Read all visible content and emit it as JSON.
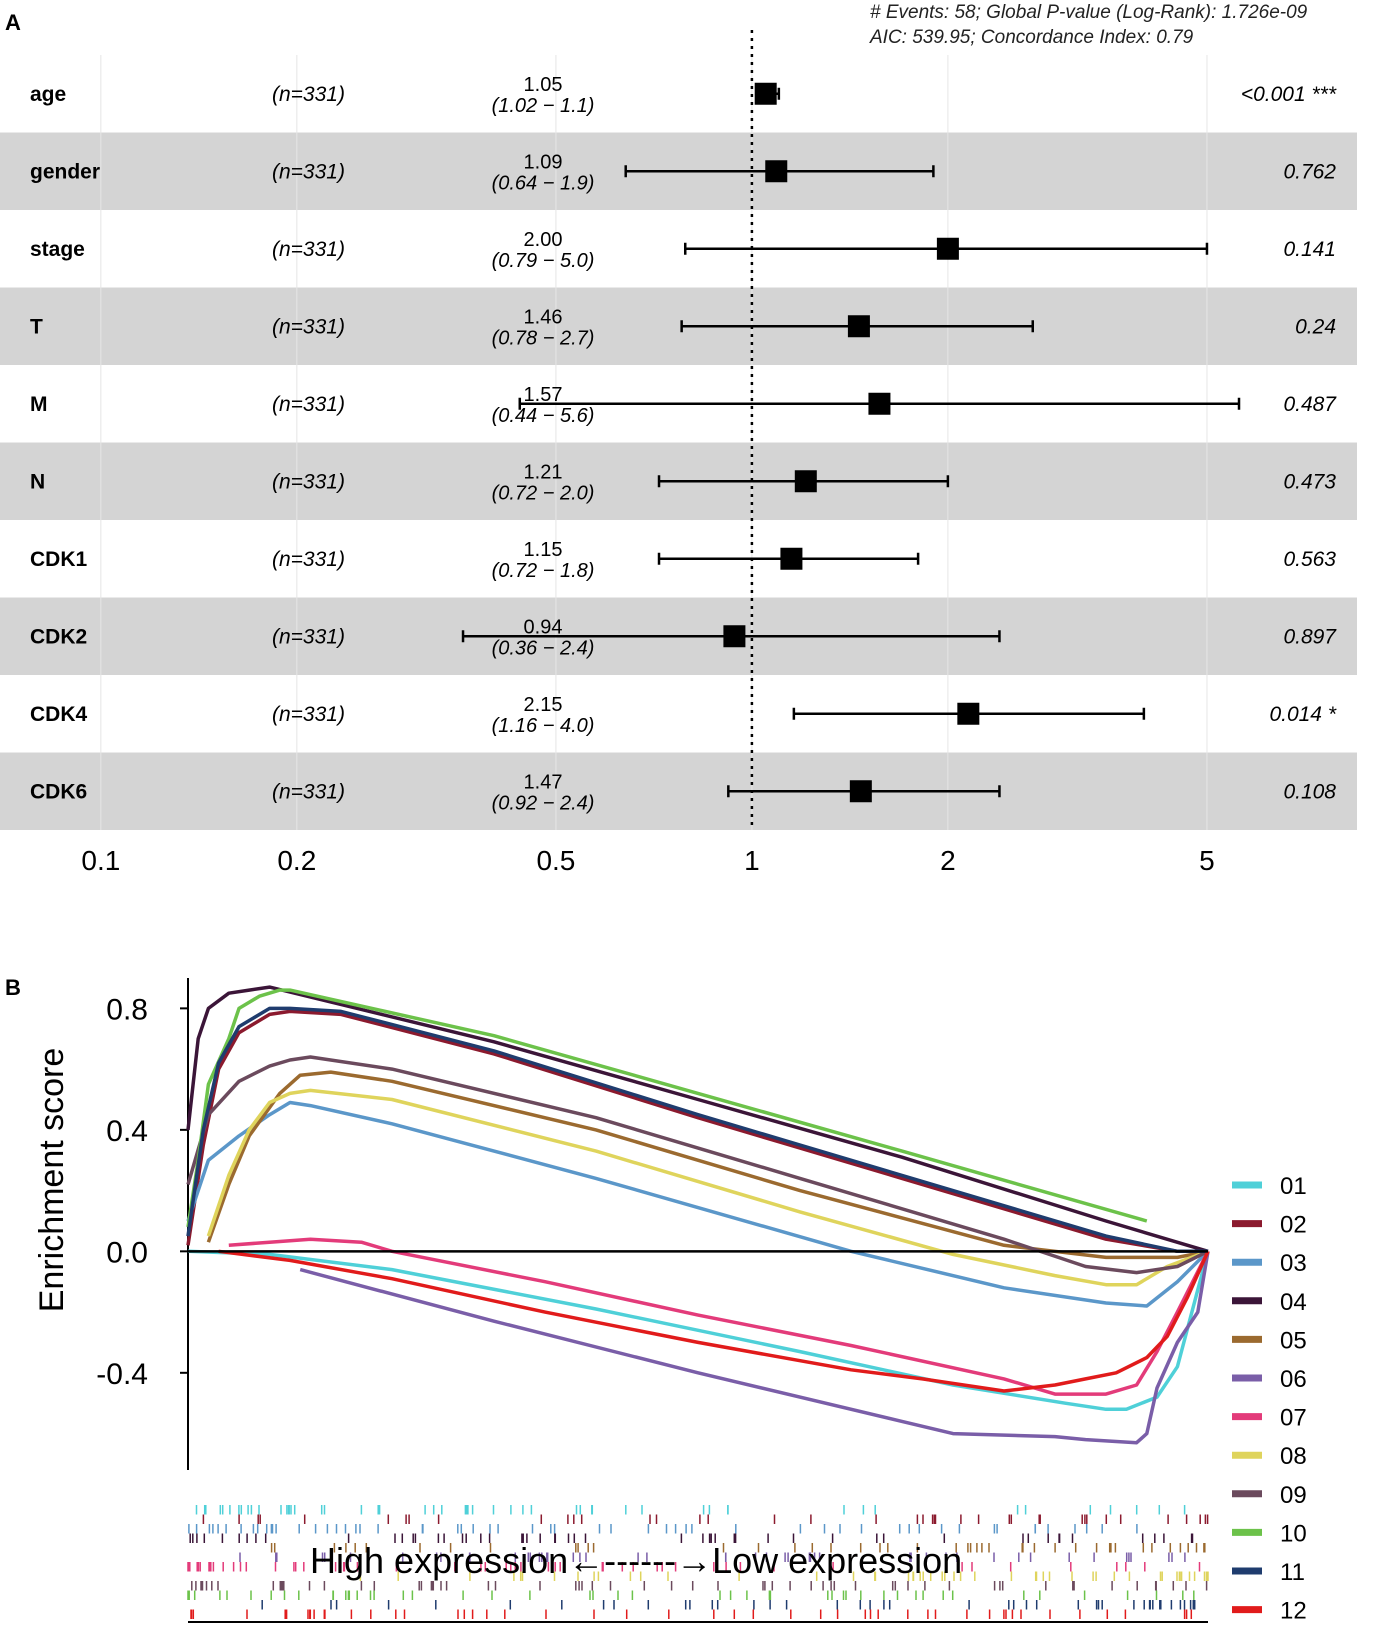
{
  "panel_labels": {
    "a": "A",
    "b": "B"
  },
  "chart_data": [
    {
      "type": "forest",
      "panel": "A",
      "stats_line1": "# Events: 58; Global P-value (Log-Rank): 1.726e-09",
      "stats_line2": "AIC: 539.95; Concordance Index: 0.79",
      "x_ticks": [
        0.1,
        0.2,
        0.5,
        1,
        2,
        5
      ],
      "x_tick_labels": [
        "0.1",
        "0.2",
        "0.5",
        "1",
        "2",
        "5"
      ],
      "xlim": [
        0.07,
        8.5
      ],
      "reference_line": 1,
      "rows": [
        {
          "label": "age",
          "n": "(n=331)",
          "hr_text": "1.05",
          "ci_text": "(1.02 − 1.1)",
          "hr": 1.05,
          "lo": 1.02,
          "hi": 1.1,
          "p": "<0.001 ***"
        },
        {
          "label": "gender",
          "n": "(n=331)",
          "hr_text": "1.09",
          "ci_text": "(0.64 − 1.9)",
          "hr": 1.09,
          "lo": 0.64,
          "hi": 1.9,
          "p": "0.762"
        },
        {
          "label": "stage",
          "n": "(n=331)",
          "hr_text": "2.00",
          "ci_text": "(0.79 − 5.0)",
          "hr": 2.0,
          "lo": 0.79,
          "hi": 5.0,
          "p": "0.141"
        },
        {
          "label": "T",
          "n": "(n=331)",
          "hr_text": "1.46",
          "ci_text": "(0.78 − 2.7)",
          "hr": 1.46,
          "lo": 0.78,
          "hi": 2.7,
          "p": "0.24"
        },
        {
          "label": "M",
          "n": "(n=331)",
          "hr_text": "1.57",
          "ci_text": "(0.44 − 5.6)",
          "hr": 1.57,
          "lo": 0.44,
          "hi": 5.6,
          "p": "0.487"
        },
        {
          "label": "N",
          "n": "(n=331)",
          "hr_text": "1.21",
          "ci_text": "(0.72 − 2.0)",
          "hr": 1.21,
          "lo": 0.72,
          "hi": 2.0,
          "p": "0.473"
        },
        {
          "label": "CDK1",
          "n": "(n=331)",
          "hr_text": "1.15",
          "ci_text": "(0.72 − 1.8)",
          "hr": 1.15,
          "lo": 0.72,
          "hi": 1.8,
          "p": "0.563"
        },
        {
          "label": "CDK2",
          "n": "(n=331)",
          "hr_text": "0.94",
          "ci_text": "(0.36 − 2.4)",
          "hr": 0.94,
          "lo": 0.36,
          "hi": 2.4,
          "p": "0.897"
        },
        {
          "label": "CDK4",
          "n": "(n=331)",
          "hr_text": "2.15",
          "ci_text": "(1.16 − 4.0)",
          "hr": 2.15,
          "lo": 1.16,
          "hi": 4.0,
          "p": "0.014 *"
        },
        {
          "label": "CDK6",
          "n": "(n=331)",
          "hr_text": "1.47",
          "ci_text": "(0.92 − 2.4)",
          "hr": 1.47,
          "lo": 0.92,
          "hi": 2.4,
          "p": "0.108"
        }
      ]
    },
    {
      "type": "line",
      "panel": "B",
      "ylabel": "Enrichment score",
      "ylim": [
        -0.72,
        0.9
      ],
      "y_ticks": [
        0.8,
        0.4,
        0.0,
        -0.4
      ],
      "y_tick_labels": [
        "0.8",
        "0.4",
        "0.0",
        "-0.4"
      ],
      "xlim": [
        0,
        1
      ],
      "annotation": "High expression←------→Low expression",
      "series": [
        {
          "name": "01",
          "color": "#4fd0d8",
          "x": [
            0.0,
            0.08,
            0.2,
            0.4,
            0.6,
            0.75,
            0.86,
            0.9,
            0.92,
            0.95,
            0.97,
            1.0
          ],
          "y": [
            0.0,
            -0.01,
            -0.06,
            -0.19,
            -0.33,
            -0.44,
            -0.5,
            -0.52,
            -0.52,
            -0.48,
            -0.38,
            0.0
          ]
        },
        {
          "name": "02",
          "color": "#8b1a2e",
          "x": [
            0.0,
            0.015,
            0.03,
            0.05,
            0.08,
            0.1,
            0.15,
            0.3,
            0.5,
            0.7,
            0.9,
            0.97,
            1.0
          ],
          "y": [
            0.02,
            0.35,
            0.6,
            0.72,
            0.78,
            0.79,
            0.78,
            0.65,
            0.44,
            0.24,
            0.04,
            0.0,
            0.0
          ]
        },
        {
          "name": "03",
          "color": "#5b97c9",
          "x": [
            0.0,
            0.02,
            0.05,
            0.08,
            0.1,
            0.12,
            0.2,
            0.4,
            0.65,
            0.8,
            0.9,
            0.94,
            0.97,
            1.0
          ],
          "y": [
            0.1,
            0.3,
            0.38,
            0.45,
            0.49,
            0.48,
            0.42,
            0.24,
            0.0,
            -0.12,
            -0.17,
            -0.18,
            -0.1,
            0.0
          ]
        },
        {
          "name": "04",
          "color": "#3b1538",
          "x": [
            0.0,
            0.01,
            0.02,
            0.04,
            0.06,
            0.08,
            0.3,
            0.5,
            0.7,
            0.9,
            0.98,
            1.0
          ],
          "y": [
            0.4,
            0.7,
            0.8,
            0.85,
            0.86,
            0.87,
            0.69,
            0.5,
            0.31,
            0.1,
            0.02,
            0.0
          ]
        },
        {
          "name": "05",
          "color": "#9b6a2f",
          "x": [
            0.02,
            0.04,
            0.06,
            0.09,
            0.11,
            0.14,
            0.2,
            0.4,
            0.6,
            0.8,
            0.9,
            0.97,
            1.0
          ],
          "y": [
            0.03,
            0.22,
            0.38,
            0.52,
            0.58,
            0.59,
            0.56,
            0.4,
            0.2,
            0.02,
            -0.02,
            -0.02,
            0.0
          ]
        },
        {
          "name": "06",
          "color": "#7a5ea8",
          "x": [
            0.11,
            0.3,
            0.5,
            0.7,
            0.75,
            0.85,
            0.88,
            0.93,
            0.94,
            0.95,
            0.97,
            0.99,
            1.0
          ],
          "y": [
            -0.06,
            -0.23,
            -0.4,
            -0.56,
            -0.6,
            -0.61,
            -0.62,
            -0.63,
            -0.6,
            -0.45,
            -0.3,
            -0.2,
            0.0
          ]
        },
        {
          "name": "07",
          "color": "#e33b7a",
          "x": [
            0.04,
            0.08,
            0.12,
            0.17,
            0.2,
            0.35,
            0.5,
            0.65,
            0.8,
            0.85,
            0.9,
            0.93,
            0.95,
            0.97,
            1.0
          ],
          "y": [
            0.02,
            0.03,
            0.04,
            0.03,
            0.0,
            -0.1,
            -0.21,
            -0.31,
            -0.42,
            -0.47,
            -0.47,
            -0.44,
            -0.33,
            -0.2,
            0.0
          ]
        },
        {
          "name": "08",
          "color": "#dfd45c",
          "x": [
            0.02,
            0.04,
            0.06,
            0.08,
            0.1,
            0.12,
            0.2,
            0.4,
            0.6,
            0.75,
            0.85,
            0.9,
            0.93,
            0.96,
            1.0
          ],
          "y": [
            0.05,
            0.25,
            0.4,
            0.49,
            0.52,
            0.53,
            0.5,
            0.33,
            0.13,
            -0.01,
            -0.08,
            -0.11,
            -0.11,
            -0.05,
            0.0
          ]
        },
        {
          "name": "09",
          "color": "#6b4a5d",
          "x": [
            0.0,
            0.02,
            0.05,
            0.08,
            0.1,
            0.12,
            0.2,
            0.4,
            0.6,
            0.8,
            0.88,
            0.93,
            0.97,
            1.0
          ],
          "y": [
            0.22,
            0.45,
            0.56,
            0.61,
            0.63,
            0.64,
            0.6,
            0.44,
            0.24,
            0.04,
            -0.05,
            -0.07,
            -0.05,
            0.0
          ]
        },
        {
          "name": "10",
          "color": "#6cc24a",
          "x": [
            0.0,
            0.01,
            0.02,
            0.04,
            0.05,
            0.07,
            0.09,
            0.1,
            0.3,
            0.5,
            0.7,
            0.94
          ],
          "y": [
            0.08,
            0.3,
            0.55,
            0.7,
            0.8,
            0.84,
            0.86,
            0.86,
            0.71,
            0.52,
            0.33,
            0.1
          ]
        },
        {
          "name": "11",
          "color": "#1f3c6e",
          "x": [
            0.0,
            0.015,
            0.03,
            0.05,
            0.08,
            0.1,
            0.15,
            0.3,
            0.5,
            0.7,
            0.9,
            0.97,
            1.0
          ],
          "y": [
            0.05,
            0.4,
            0.62,
            0.74,
            0.8,
            0.8,
            0.79,
            0.66,
            0.45,
            0.25,
            0.05,
            0.0,
            0.0
          ]
        },
        {
          "name": "12",
          "color": "#e11b1b",
          "x": [
            0.03,
            0.1,
            0.2,
            0.35,
            0.5,
            0.65,
            0.72,
            0.8,
            0.85,
            0.88,
            0.91,
            0.94,
            0.96,
            0.98,
            1.0
          ],
          "y": [
            0.0,
            -0.03,
            -0.09,
            -0.2,
            -0.3,
            -0.39,
            -0.42,
            -0.46,
            -0.44,
            -0.42,
            -0.4,
            -0.35,
            -0.28,
            -0.15,
            0.0
          ]
        }
      ]
    }
  ]
}
